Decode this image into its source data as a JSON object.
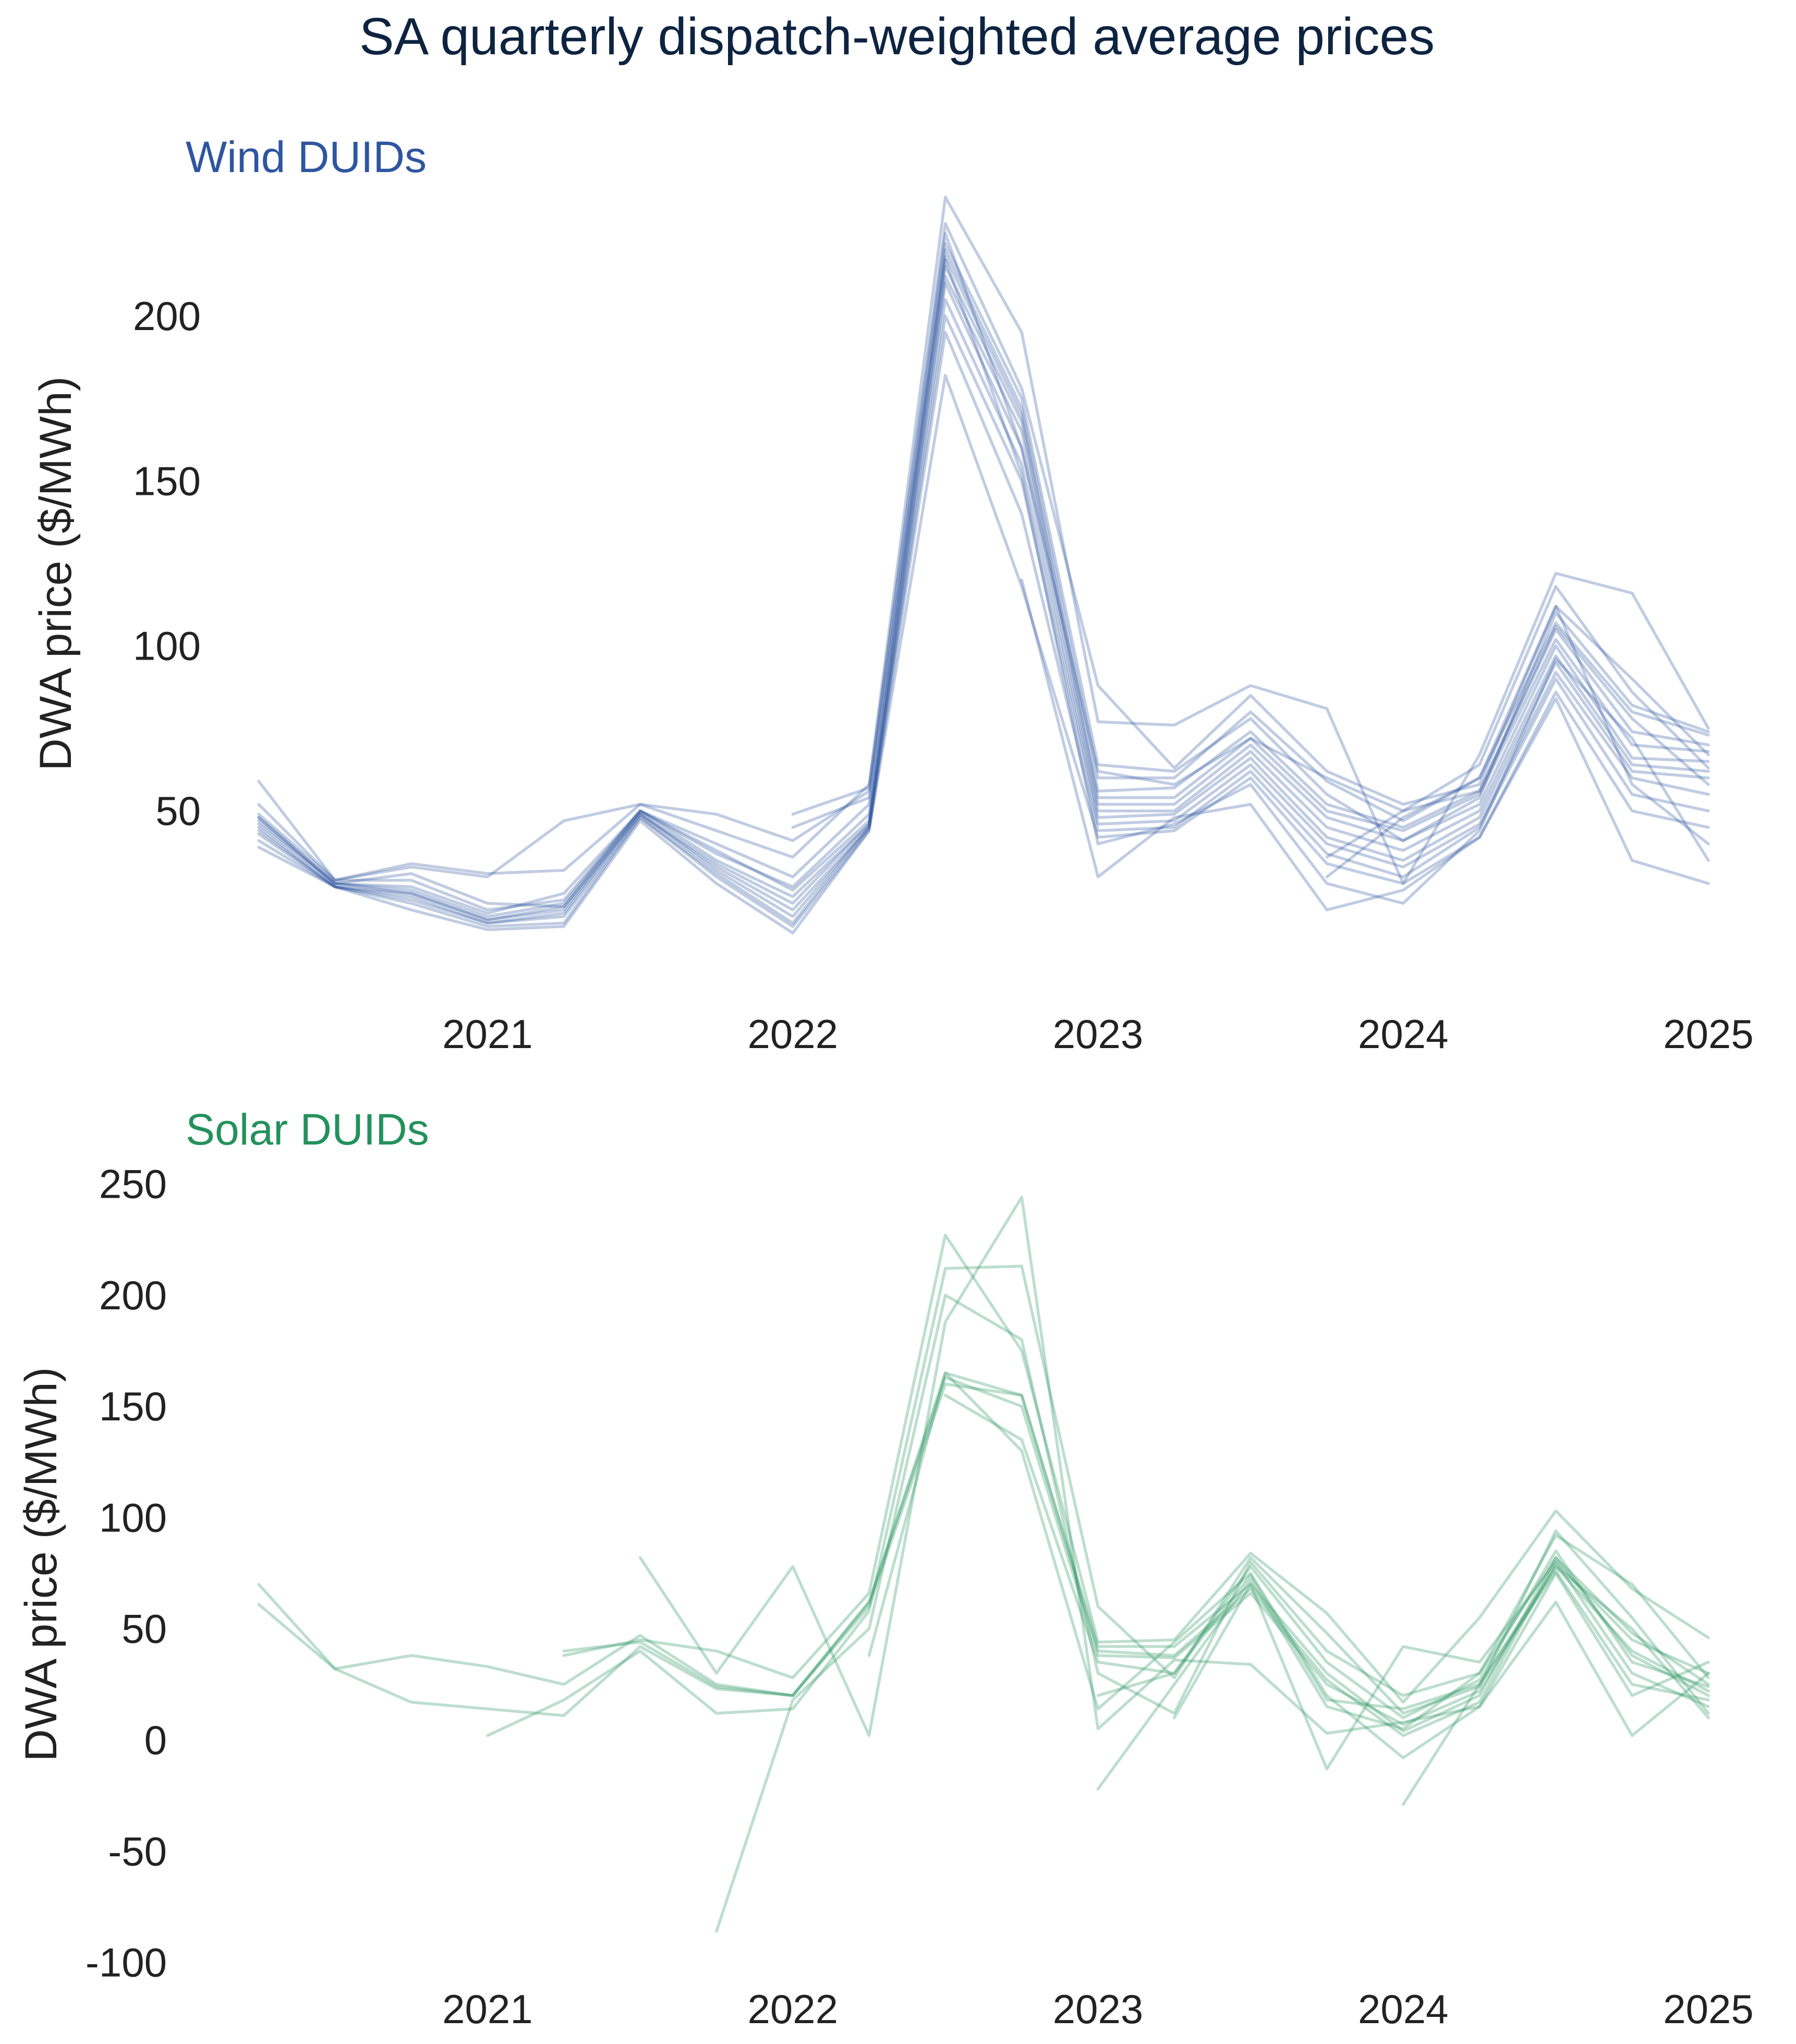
{
  "figure_title": "SA quarterly dispatch-weighted average prices",
  "colors": {
    "wind": "#2e55a0",
    "solar": "#23915c",
    "title": "#0d2340",
    "text": "#222222"
  },
  "chart_data": [
    {
      "type": "line",
      "title": "Wind DUIDs",
      "xlabel": "",
      "ylabel": "DWA price ($/MWh)",
      "x_ticks": [
        "2021",
        "2022",
        "2023",
        "2024",
        "2025"
      ],
      "y_ticks": [
        50,
        100,
        150,
        200
      ],
      "xlim": [
        2020.25,
        2025.0
      ],
      "ylim": [
        0,
        240
      ],
      "grid": false,
      "legend": "none",
      "line_opacity": 0.3,
      "x": [
        2020.25,
        2020.5,
        2020.75,
        2021.0,
        2021.25,
        2021.5,
        2021.75,
        2022.0,
        2022.25,
        2022.5,
        2022.75,
        2023.0,
        2023.25,
        2023.5,
        2023.75,
        2024.0,
        2024.25,
        2024.5,
        2024.75,
        2025.0
      ],
      "series": [
        {
          "values": [
            59,
            29,
            34,
            31,
            32,
            52,
            44,
            36,
            58,
            236,
            195,
            77,
            76,
            88,
            81,
            28,
            67,
            122,
            116,
            75
          ]
        },
        {
          "values": [
            52,
            29,
            33,
            30,
            47,
            52,
            49,
            41,
            56,
            228,
            178,
            88,
            63,
            85,
            62,
            52,
            58,
            112,
            90,
            67
          ]
        },
        {
          "values": [
            48,
            28,
            31,
            22,
            21,
            50,
            40,
            30,
            52,
            222,
            175,
            64,
            62,
            78,
            55,
            41,
            54,
            110,
            82,
            74
          ]
        },
        {
          "values": [
            49,
            29,
            29,
            20,
            23,
            50,
            37,
            27,
            49,
            220,
            172,
            60,
            60,
            80,
            59,
            47,
            60,
            107,
            80,
            73
          ]
        },
        {
          "values": [
            48,
            28,
            27,
            19,
            25,
            50,
            38,
            26,
            47,
            218,
            170,
            56,
            57,
            74,
            52,
            45,
            56,
            105,
            74,
            70
          ]
        },
        {
          "values": [
            47,
            28,
            26,
            18,
            22,
            50,
            35,
            24,
            46,
            215,
            168,
            54,
            54,
            72,
            50,
            44,
            55,
            102,
            70,
            68
          ]
        },
        {
          "values": [
            46,
            28,
            25,
            17,
            21,
            49,
            34,
            22,
            46,
            212,
            165,
            52,
            52,
            70,
            48,
            41,
            52,
            100,
            66,
            65
          ]
        },
        {
          "values": [
            45,
            27,
            25,
            17,
            20,
            49,
            33,
            20,
            45,
            210,
            160,
            50,
            50,
            68,
            45,
            38,
            50,
            97,
            64,
            62
          ]
        },
        {
          "values": [
            44,
            27,
            24,
            16,
            19,
            49,
            32,
            18,
            45,
            205,
            155,
            48,
            49,
            66,
            42,
            35,
            48,
            95,
            62,
            60
          ]
        },
        {
          "values": [
            43,
            27,
            23,
            16,
            18,
            48,
            31,
            16,
            45,
            200,
            150,
            46,
            47,
            64,
            40,
            33,
            46,
            92,
            60,
            55
          ]
        },
        {
          "values": [
            41,
            27,
            22,
            15,
            16,
            48,
            30,
            15,
            44,
            195,
            140,
            44,
            45,
            62,
            37,
            30,
            45,
            90,
            55,
            50
          ]
        },
        {
          "values": [
            39,
            27,
            20,
            14,
            15,
            47,
            28,
            13,
            44,
            182,
            118,
            42,
            44,
            60,
            34,
            28,
            42,
            86,
            50,
            45
          ]
        },
        {
          "values": [
            null,
            null,
            null,
            null,
            null,
            null,
            null,
            49,
            57,
            225,
            160,
            62,
            58,
            72,
            60,
            50,
            56,
            106,
            78,
            58
          ]
        },
        {
          "values": [
            null,
            null,
            null,
            null,
            null,
            null,
            null,
            45,
            54,
            217,
            152,
            40,
            46,
            58,
            28,
            22,
            44,
            96,
            72,
            35
          ]
        },
        {
          "values": [
            null,
            null,
            null,
            null,
            null,
            null,
            null,
            null,
            null,
            null,
            120,
            30,
            48,
            52,
            20,
            26,
            42,
            84,
            35,
            28
          ]
        },
        {
          "values": [
            null,
            null,
            null,
            null,
            null,
            null,
            null,
            null,
            null,
            null,
            null,
            null,
            null,
            null,
            36,
            50,
            64,
            118,
            86,
            63
          ]
        },
        {
          "values": [
            null,
            null,
            null,
            null,
            null,
            null,
            null,
            null,
            null,
            null,
            null,
            null,
            null,
            null,
            30,
            48,
            60,
            112,
            58,
            40
          ]
        }
      ]
    },
    {
      "type": "line",
      "title": "Solar DUIDs",
      "xlabel": "",
      "ylabel": "DWA price ($/MWh)",
      "x_ticks": [
        "2021",
        "2022",
        "2023",
        "2024",
        "2025"
      ],
      "y_ticks": [
        250,
        200,
        150,
        100,
        50,
        0,
        -50,
        -100
      ],
      "xlim": [
        2020.25,
        2025.0
      ],
      "ylim": [
        -100,
        250
      ],
      "grid": false,
      "legend": "none",
      "line_opacity": 0.3,
      "x": [
        2020.25,
        2020.5,
        2020.75,
        2021.0,
        2021.25,
        2021.5,
        2021.75,
        2022.0,
        2022.25,
        2022.5,
        2022.75,
        2023.0,
        2023.25,
        2023.5,
        2023.75,
        2024.0,
        2024.25,
        2024.5,
        2024.75,
        2025.0
      ],
      "series": [
        {
          "values": [
            70,
            32,
            38,
            33,
            25,
            47,
            25,
            20,
            62,
            165,
            155,
            42,
            42,
            70,
            30,
            4,
            20,
            82,
            48,
            25
          ]
        },
        {
          "values": [
            61,
            32,
            17,
            14,
            11,
            42,
            23,
            20,
            60,
            160,
            155,
            40,
            38,
            68,
            27,
            2,
            17,
            80,
            45,
            30
          ]
        },
        {
          "values": [
            null,
            null,
            null,
            null,
            40,
            44,
            24,
            20,
            62,
            163,
            150,
            38,
            37,
            66,
            25,
            7,
            22,
            78,
            40,
            22
          ]
        },
        {
          "values": [
            null,
            null,
            null,
            null,
            38,
            45,
            40,
            28,
            66,
            227,
            175,
            44,
            45,
            84,
            57,
            17,
            55,
            103,
            68,
            46
          ]
        },
        {
          "values": [
            null,
            null,
            null,
            2,
            18,
            40,
            12,
            14,
            58,
            212,
            213,
            60,
            28,
            82,
            48,
            12,
            24,
            94,
            55,
            12
          ]
        },
        {
          "values": [
            null,
            null,
            null,
            null,
            null,
            82,
            30,
            78,
            2,
            188,
            244,
            5,
            36,
            34,
            3,
            8,
            15,
            62,
            2,
            30
          ]
        },
        {
          "values": [
            null,
            null,
            null,
            null,
            null,
            null,
            -86,
            18,
            50,
            200,
            180,
            30,
            12,
            80,
            40,
            20,
            30,
            92,
            70,
            28
          ]
        },
        {
          "values": [
            null,
            null,
            null,
            null,
            null,
            null,
            null,
            null,
            38,
            165,
            130,
            14,
            44,
            75,
            20,
            -8,
            15,
            75,
            20,
            35
          ]
        },
        {
          "values": [
            null,
            null,
            null,
            null,
            null,
            null,
            null,
            null,
            null,
            155,
            135,
            35,
            30,
            78,
            35,
            10,
            27,
            85,
            35,
            24
          ]
        },
        {
          "values": [
            null,
            null,
            null,
            null,
            null,
            null,
            null,
            null,
            null,
            null,
            null,
            -22,
            25,
            72,
            15,
            5,
            30,
            82,
            38,
            20
          ]
        },
        {
          "values": [
            null,
            null,
            null,
            null,
            null,
            null,
            null,
            null,
            null,
            null,
            null,
            20,
            30,
            74,
            18,
            14,
            25,
            76,
            25,
            18
          ]
        },
        {
          "values": [
            null,
            null,
            null,
            null,
            null,
            null,
            null,
            null,
            null,
            null,
            null,
            null,
            10,
            70,
            -13,
            42,
            35,
            80,
            30,
            15
          ]
        },
        {
          "values": [
            null,
            null,
            null,
            null,
            null,
            null,
            null,
            null,
            null,
            null,
            null,
            null,
            null,
            null,
            null,
            -29,
            25,
            78,
            50,
            10
          ]
        }
      ]
    }
  ]
}
